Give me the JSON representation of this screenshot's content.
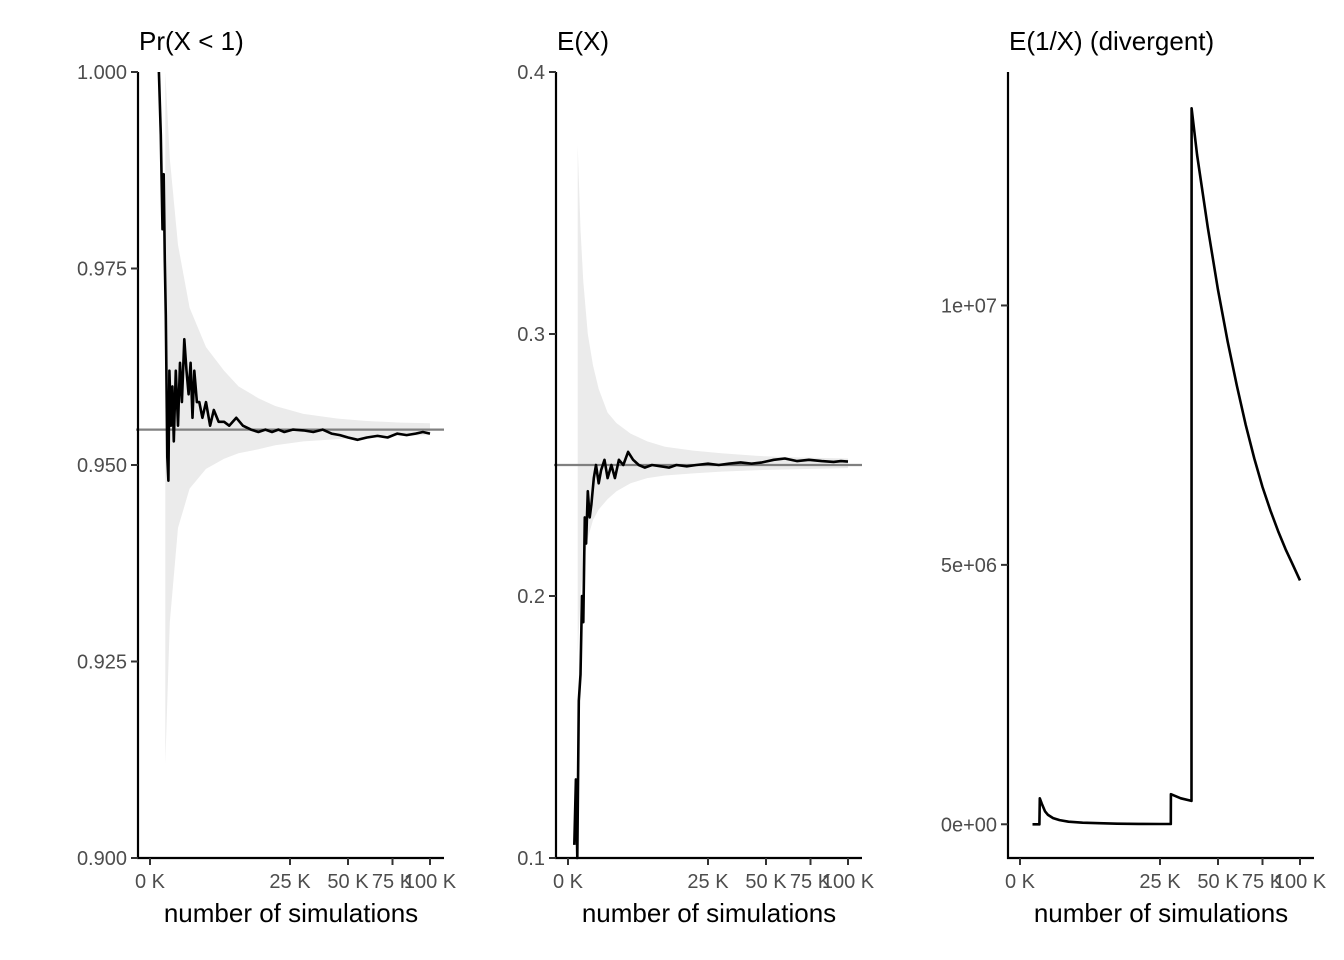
{
  "chart_data": [
    {
      "type": "line",
      "title": "Pr(X < 1)",
      "xlabel": "number of simulations",
      "ylabel": "",
      "x_scale": "sqrt",
      "xlim": [
        0,
        100000
      ],
      "ylim": [
        0.9,
        1.0
      ],
      "x_ticks": [
        0,
        25000,
        50000,
        75000,
        100000
      ],
      "x_tick_labels": [
        "0 K",
        "25 K",
        "50 K",
        "75 K",
        "100 K"
      ],
      "y_ticks": [
        0.9,
        0.925,
        0.95,
        0.975,
        1.0
      ],
      "y_tick_labels": [
        "0.900",
        "0.925",
        "0.950",
        "0.975",
        "1.000"
      ],
      "reference_value": 0.9545,
      "band": {
        "x": [
          300,
          500,
          1000,
          2000,
          4000,
          7000,
          10000,
          15000,
          20000,
          30000,
          45000,
          60000,
          80000,
          100000
        ],
        "lower": [
          0.912,
          0.93,
          0.942,
          0.947,
          0.9495,
          0.9508,
          0.9515,
          0.952,
          0.9525,
          0.953,
          0.9533,
          0.9535,
          0.9537,
          0.9538
        ],
        "upper": [
          1.0,
          0.989,
          0.978,
          0.97,
          0.965,
          0.962,
          0.96,
          0.9585,
          0.9575,
          0.9565,
          0.9559,
          0.9556,
          0.9554,
          0.9553
        ]
      },
      "series": [
        {
          "x": [
            100,
            150,
            200,
            240,
            280,
            320,
            380,
            430,
            480,
            560,
            640,
            720,
            850,
            1000,
            1150,
            1300,
            1500,
            1700,
            1900,
            2100,
            2300,
            2500,
            2800,
            3100,
            3500,
            4000,
            4600,
            5200,
            6000,
            7000,
            8000,
            9500,
            11000,
            13000,
            15000,
            17000,
            19000,
            21000,
            23000,
            26000,
            30000,
            34000,
            38000,
            42000,
            46000,
            50000,
            55000,
            60000,
            66000,
            72000,
            78000,
            84000,
            90000,
            95000,
            100000
          ],
          "values": [
            1.0,
            0.992,
            0.98,
            0.987,
            0.976,
            0.969,
            0.951,
            0.948,
            0.962,
            0.955,
            0.96,
            0.953,
            0.962,
            0.955,
            0.963,
            0.958,
            0.966,
            0.962,
            0.959,
            0.963,
            0.956,
            0.962,
            0.958,
            0.958,
            0.956,
            0.958,
            0.955,
            0.957,
            0.9555,
            0.9555,
            0.955,
            0.956,
            0.955,
            0.9545,
            0.9542,
            0.9545,
            0.9542,
            0.9545,
            0.9542,
            0.9545,
            0.9544,
            0.9542,
            0.9545,
            0.954,
            0.9538,
            0.9535,
            0.9532,
            0.9535,
            0.9537,
            0.9535,
            0.954,
            0.9538,
            0.954,
            0.9542,
            0.954
          ]
        }
      ]
    },
    {
      "type": "line",
      "title": "E(X)",
      "xlabel": "number of simulations",
      "ylabel": "",
      "x_scale": "sqrt",
      "xlim": [
        0,
        100000
      ],
      "ylim": [
        0.1,
        0.4
      ],
      "x_ticks": [
        0,
        25000,
        50000,
        75000,
        100000
      ],
      "x_tick_labels": [
        "0 K",
        "25 K",
        "50 K",
        "75 K",
        "100 K"
      ],
      "y_ticks": [
        0.1,
        0.2,
        0.3,
        0.4
      ],
      "y_tick_labels": [
        "0.1",
        "0.2",
        "0.3",
        "0.4"
      ],
      "reference_value": 0.25,
      "band": {
        "x": [
          120,
          200,
          300,
          500,
          800,
          1200,
          2000,
          3000,
          5000,
          8000,
          12000,
          20000,
          30000,
          45000,
          60000,
          80000,
          100000
        ],
        "lower": [
          0.178,
          0.2,
          0.212,
          0.222,
          0.229,
          0.233,
          0.237,
          0.24,
          0.243,
          0.245,
          0.246,
          0.2468,
          0.2475,
          0.248,
          0.2483,
          0.2486,
          0.2488
        ],
        "upper": [
          0.372,
          0.34,
          0.32,
          0.3,
          0.288,
          0.279,
          0.27,
          0.266,
          0.262,
          0.259,
          0.257,
          0.2555,
          0.2545,
          0.2535,
          0.253,
          0.2527,
          0.2525
        ]
      },
      "series": [
        {
          "x": [
            50,
            80,
            110,
            150,
            200,
            250,
            300,
            360,
            420,
            500,
            600,
            700,
            850,
            1000,
            1200,
            1400,
            1700,
            2000,
            2400,
            2800,
            3300,
            3900,
            4600,
            5400,
            6400,
            7500,
            9000,
            11000,
            13000,
            15000,
            18000,
            21000,
            25000,
            29000,
            33000,
            38000,
            43000,
            48000,
            54000,
            60000,
            67000,
            74000,
            82000,
            90000,
            95000,
            100000
          ],
          "values": [
            0.105,
            0.13,
            0.1,
            0.16,
            0.17,
            0.2,
            0.19,
            0.23,
            0.22,
            0.24,
            0.23,
            0.235,
            0.245,
            0.25,
            0.243,
            0.248,
            0.252,
            0.245,
            0.25,
            0.245,
            0.252,
            0.25,
            0.255,
            0.252,
            0.25,
            0.249,
            0.25,
            0.2495,
            0.249,
            0.25,
            0.2495,
            0.25,
            0.2505,
            0.25,
            0.2505,
            0.251,
            0.2505,
            0.251,
            0.252,
            0.2525,
            0.2515,
            0.252,
            0.2515,
            0.2512,
            0.2515,
            0.2513
          ]
        }
      ]
    },
    {
      "type": "line",
      "title": "E(1/X) (divergent)",
      "xlabel": "number of simulations",
      "ylabel": "",
      "x_scale": "sqrt",
      "xlim": [
        0,
        100000
      ],
      "ylim": [
        -650000,
        14500000
      ],
      "x_ticks": [
        0,
        25000,
        50000,
        75000,
        100000
      ],
      "x_tick_labels": [
        "0 K",
        "25 K",
        "50 K",
        "75 K",
        "100 K"
      ],
      "y_ticks": [
        0,
        5000000,
        10000000
      ],
      "y_tick_labels": [
        "0e+00",
        "5e+06",
        "1e+07"
      ],
      "series": [
        {
          "x": [
            200,
            480,
            500,
            600,
            800,
            1000,
            1400,
            2000,
            3000,
            5000,
            8000,
            12000,
            18000,
            25000,
            29000,
            29050,
            33000,
            37500,
            37550,
            40000,
            45000,
            50000,
            55000,
            60000,
            65000,
            70000,
            75000,
            80000,
            85000,
            90000,
            95000,
            100000
          ],
          "values": [
            0,
            0,
            500000,
            400000,
            250000,
            180000,
            120000,
            80000,
            50000,
            30000,
            20000,
            12000,
            8000,
            5000,
            4500,
            580000,
            500000,
            450000,
            13800000,
            12900000,
            11500000,
            10300000,
            9300000,
            8450000,
            7700000,
            7050000,
            6500000,
            6050000,
            5650000,
            5300000,
            5000000,
            4700000
          ]
        }
      ]
    }
  ]
}
